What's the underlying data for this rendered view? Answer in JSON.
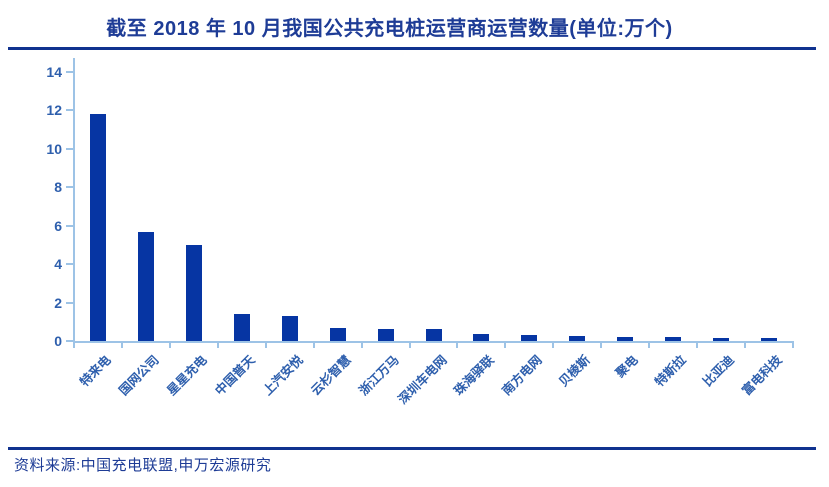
{
  "page": {
    "title": "截至 2018 年 10 月我国公共充电桩运营商运营数量(单位:万个)",
    "source": "资料来源:中国充电联盟,申万宏源研究"
  },
  "colors": {
    "navy": "#1E3C96",
    "divider": "#10328F",
    "bar": "#0635A3",
    "axis": "#9DC3E6",
    "tick_label": "#2E5FAD"
  },
  "chart_data": {
    "type": "bar",
    "title": "截至 2018 年 10 月我国公共充电桩运营商运营数量(单位:万个)",
    "unit": "万个",
    "categories": [
      "特来电",
      "国网公司",
      "星星充电",
      "中国普天",
      "上汽安悦",
      "云杉智慧",
      "浙江万马",
      "深圳车电网",
      "珠海驿联",
      "南方电网",
      "贝棱斯",
      "聚电",
      "特斯拉",
      "比亚迪",
      "富电科技"
    ],
    "values": [
      11.8,
      5.65,
      5.0,
      1.4,
      1.3,
      0.68,
      0.65,
      0.6,
      0.35,
      0.3,
      0.28,
      0.2,
      0.2,
      0.15,
      0.15
    ],
    "xlabel": "",
    "ylabel": "",
    "ylim": [
      0,
      14
    ],
    "y_ticks": [
      0,
      2,
      4,
      6,
      8,
      10,
      12,
      14
    ],
    "grid": false,
    "legend": false
  }
}
